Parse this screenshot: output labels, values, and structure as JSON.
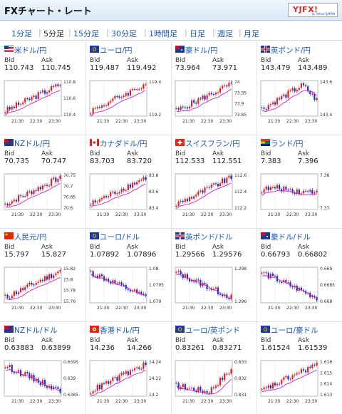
{
  "header": {
    "title": "FXチャート・レート",
    "logo_text": "YJFX!",
    "logo_sub": "by Yahoo! JAPAN"
  },
  "tabs": [
    "1分足",
    "5分足",
    "15分足",
    "30分足",
    "1時間足",
    "日足",
    "週足",
    "月足"
  ],
  "active_tab": "5分足",
  "labels": {
    "bid": "Bid",
    "ask": "Ask"
  },
  "pairs": [
    {
      "name": "米ドル/円",
      "flag": "us",
      "bid": "110.743",
      "ask": "110.745",
      "y_ticks": [
        "110.8",
        "110.6",
        "110.4"
      ],
      "x_ticks": [
        "21:30",
        "22:30",
        "23:30"
      ],
      "trend": "up"
    },
    {
      "name": "ユーロ/円",
      "flag": "eu",
      "bid": "119.487",
      "ask": "119.492",
      "y_ticks": [
        "119.4",
        "119.2"
      ],
      "x_ticks": [
        "21:30",
        "22:30",
        "23:30"
      ],
      "trend": "up"
    },
    {
      "name": "豪ドル/円",
      "flag": "au",
      "bid": "73.964",
      "ask": "73.971",
      "y_ticks": [
        "74",
        "73.95",
        "73.9",
        "73.85"
      ],
      "x_ticks": [
        "21:30",
        "22:30",
        "23:30"
      ],
      "trend": "up"
    },
    {
      "name": "英ポンド/円",
      "flag": "gb",
      "bid": "143.479",
      "ask": "143.489",
      "y_ticks": [
        "143.6",
        "143.4"
      ],
      "x_ticks": [
        "21:30",
        "22:30",
        "23:30"
      ],
      "trend": "updown"
    },
    {
      "name": "NZドル/円",
      "flag": "nz",
      "bid": "70.735",
      "ask": "70.747",
      "y_ticks": [
        "70.75",
        "70.7",
        "70.65",
        "70.6"
      ],
      "x_ticks": [
        "21:30",
        "22:30",
        "23:30"
      ],
      "trend": "up"
    },
    {
      "name": "カナダドル/円",
      "flag": "ca",
      "bid": "83.703",
      "ask": "83.720",
      "y_ticks": [
        "83.8",
        "83.6",
        "83.4"
      ],
      "x_ticks": [
        "21:30",
        "22:30",
        "23:30"
      ],
      "trend": "up"
    },
    {
      "name": "スイスフラン/円",
      "flag": "ch",
      "bid": "112.533",
      "ask": "112.551",
      "y_ticks": [
        "112.6",
        "112.4",
        "112.2"
      ],
      "x_ticks": [
        "21:30",
        "22:30",
        "23:30"
      ],
      "trend": "up"
    },
    {
      "name": "ランド/円",
      "flag": "za",
      "bid": "7.383",
      "ask": "7.396",
      "y_ticks": [
        "7.38",
        "7.37"
      ],
      "x_ticks": [
        "21:30",
        "22:30",
        "23:30"
      ],
      "trend": "flat"
    },
    {
      "name": "人民元/円",
      "flag": "cn",
      "bid": "15.797",
      "ask": "15.827",
      "y_ticks": [
        "15.82",
        "15.8",
        "15.78",
        "15.76"
      ],
      "x_ticks": [
        "21:30",
        "22:30",
        "23:30"
      ],
      "trend": "up"
    },
    {
      "name": "ユーロ/ドル",
      "flag": "eu",
      "bid": "1.07892",
      "ask": "1.07896",
      "y_ticks": [
        "1.08",
        "1.0795",
        "1.079"
      ],
      "x_ticks": [
        "21:30",
        "22:30",
        "23:30"
      ],
      "trend": "down"
    },
    {
      "name": "英ポンド/ドル",
      "flag": "gb",
      "bid": "1.29566",
      "ask": "1.29576",
      "y_ticks": [
        "1.298",
        "1.296"
      ],
      "x_ticks": [
        "21:30",
        "22:30",
        "23:30"
      ],
      "trend": "down"
    },
    {
      "name": "豪ドル/ドル",
      "flag": "au",
      "bid": "0.66793",
      "ask": "0.66802",
      "y_ticks": [
        "0.669",
        "0.6685",
        "0.668"
      ],
      "x_ticks": [
        "21:30",
        "22:30",
        "23:30"
      ],
      "trend": "down"
    },
    {
      "name": "NZドル/ドル",
      "flag": "nz",
      "bid": "0.63883",
      "ask": "0.63899",
      "y_ticks": [
        "0.6395",
        "0.639",
        "0.6385"
      ],
      "x_ticks": [
        "21:30",
        "22:30",
        "23:30"
      ],
      "trend": "down"
    },
    {
      "name": "香港ドル/円",
      "flag": "hk",
      "bid": "14.236",
      "ask": "14.266",
      "y_ticks": [
        "14.24",
        "14.22",
        "14.2"
      ],
      "x_ticks": [
        "21:30",
        "22:30",
        "23:30"
      ],
      "trend": "up"
    },
    {
      "name": "ユーロ/英ポンド",
      "flag": "eu",
      "bid": "0.83261",
      "ask": "0.83271",
      "y_ticks": [
        "0.833",
        "0.832",
        "0.831"
      ],
      "x_ticks": [
        "21:30",
        "22:30",
        "23:30"
      ],
      "trend": "updown2"
    },
    {
      "name": "ユーロ/豪ドル",
      "flag": "eu",
      "bid": "1.61524",
      "ask": "1.61539",
      "y_ticks": [
        "1.616",
        "1.615",
        "1.614",
        "1.613"
      ],
      "x_ticks": [
        "21:30",
        "22:30",
        "23:30"
      ],
      "trend": "up"
    }
  ],
  "colors": {
    "up": "#e02020",
    "down": "#1530c8",
    "ma": "#cc22cc",
    "link": "#1a56b5"
  }
}
